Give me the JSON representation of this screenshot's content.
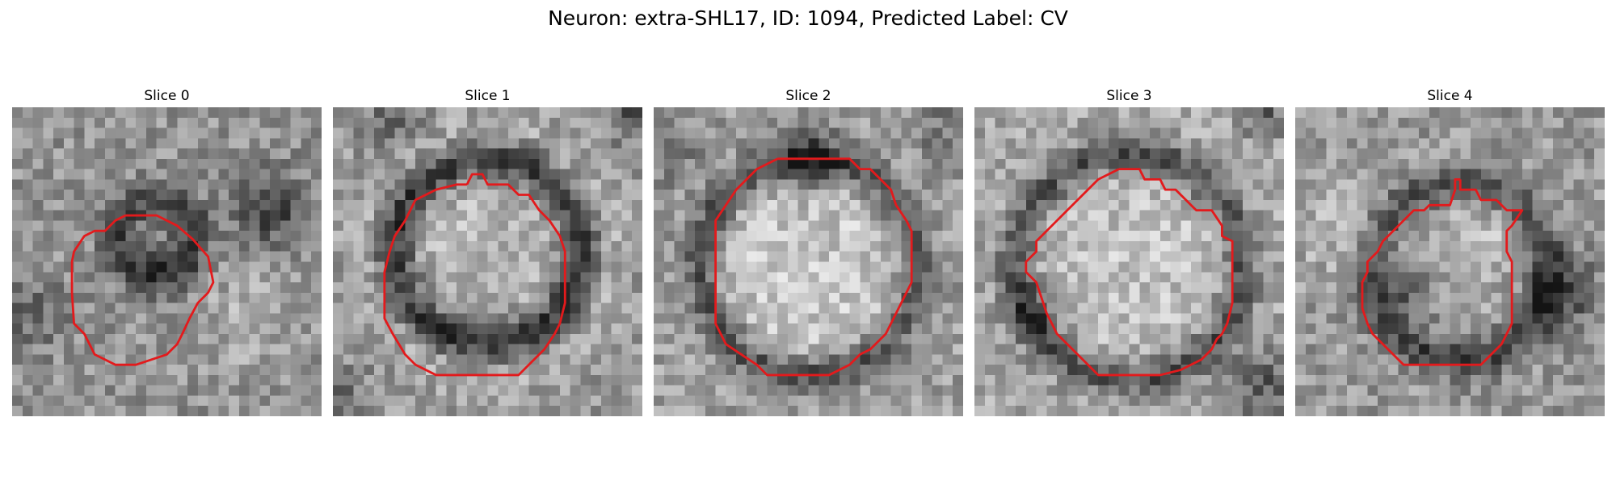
{
  "figure": {
    "title": "Neuron: extra-SHL17, ID: 1094, Predicted Label: CV"
  },
  "colors": {
    "contour": "#e31a1c",
    "background": "#ffffff",
    "colormap": "gray"
  },
  "slices": [
    {
      "title": "Slice 0"
    },
    {
      "title": "Slice 1"
    },
    {
      "title": "Slice 2"
    },
    {
      "title": "Slice 3"
    },
    {
      "title": "Slice 4"
    }
  ]
}
